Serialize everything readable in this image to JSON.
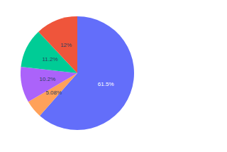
{
  "chart_data": {
    "type": "pie",
    "values": [
      61.5,
      5.08,
      10.2,
      11.2,
      12
    ],
    "value_labels": [
      "61.5%",
      "5.08%",
      "10.2%",
      "11.2%",
      "12%"
    ],
    "colors": [
      "#636efa",
      "#ffa15a",
      "#ab63fa",
      "#00cc96",
      "#ef553b"
    ],
    "data_labels": true
  }
}
